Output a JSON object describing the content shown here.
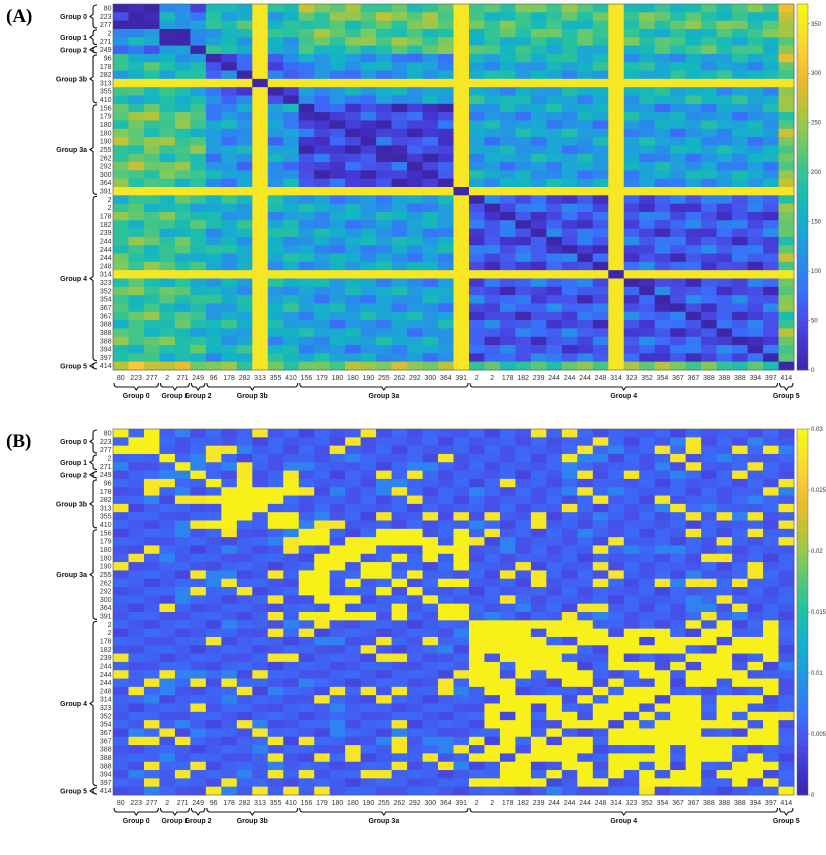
{
  "figure": {
    "panels": [
      {
        "label": "(A)"
      },
      {
        "label": "(B)"
      }
    ]
  },
  "chart_data": [
    {
      "type": "heatmap",
      "panel": "(A)",
      "title": "",
      "xlabel": "",
      "ylabel": "",
      "row_labels": [
        "80",
        "223",
        "277",
        "2",
        "271",
        "249",
        "96",
        "178",
        "282",
        "313",
        "355",
        "410",
        "156",
        "179",
        "180",
        "180",
        "190",
        "255",
        "262",
        "292",
        "300",
        "364",
        "391",
        "2",
        "2",
        "178",
        "182",
        "239",
        "244",
        "244",
        "244",
        "248",
        "314",
        "323",
        "352",
        "354",
        "367",
        "367",
        "388",
        "388",
        "388",
        "394",
        "397",
        "414"
      ],
      "col_labels": [
        "80",
        "223",
        "277",
        "2",
        "271",
        "249",
        "96",
        "178",
        "282",
        "313",
        "355",
        "410",
        "156",
        "179",
        "180",
        "180",
        "190",
        "255",
        "262",
        "292",
        "300",
        "364",
        "391",
        "2",
        "2",
        "178",
        "182",
        "239",
        "244",
        "244",
        "244",
        "248",
        "314",
        "323",
        "352",
        "354",
        "367",
        "367",
        "388",
        "388",
        "388",
        "394",
        "397",
        "414"
      ],
      "groups": [
        {
          "name": "Group 0",
          "start": 0,
          "end": 2
        },
        {
          "name": "Group 1",
          "start": 3,
          "end": 4
        },
        {
          "name": "Group 2",
          "start": 5,
          "end": 5
        },
        {
          "name": "Group 3b",
          "start": 6,
          "end": 11
        },
        {
          "name": "Group 3a",
          "start": 12,
          "end": 22
        },
        {
          "name": "Group 4",
          "start": 23,
          "end": 42
        },
        {
          "name": "Group 5",
          "start": 43,
          "end": 43
        }
      ],
      "colorbar": {
        "range": [
          0,
          370
        ],
        "ticks": [
          0,
          50,
          100,
          150,
          200,
          250,
          300,
          350
        ]
      },
      "colormap": [
        "#3e26a8",
        "#4435d0",
        "#4750e8",
        "#3a6ffc",
        "#2a8aeb",
        "#1fa1db",
        "#13b4c4",
        "#22c0a6",
        "#4bc682",
        "#83c95a",
        "#b9c437",
        "#e7ba2f",
        "#fdc937",
        "#f6e525",
        "#f9fb0e"
      ]
    },
    {
      "type": "heatmap",
      "panel": "(B)",
      "title": "",
      "xlabel": "",
      "ylabel": "",
      "row_labels": [
        "80",
        "223",
        "277",
        "2",
        "271",
        "249",
        "96",
        "178",
        "282",
        "313",
        "355",
        "410",
        "156",
        "179",
        "180",
        "180",
        "190",
        "255",
        "262",
        "292",
        "300",
        "364",
        "391",
        "2",
        "2",
        "178",
        "182",
        "239",
        "244",
        "244",
        "244",
        "248",
        "314",
        "323",
        "352",
        "354",
        "367",
        "367",
        "388",
        "388",
        "388",
        "394",
        "397",
        "414"
      ],
      "col_labels": [
        "80",
        "223",
        "277",
        "2",
        "271",
        "249",
        "96",
        "178",
        "282",
        "313",
        "355",
        "410",
        "156",
        "179",
        "180",
        "180",
        "190",
        "255",
        "262",
        "292",
        "300",
        "364",
        "391",
        "2",
        "2",
        "178",
        "182",
        "239",
        "244",
        "244",
        "244",
        "248",
        "314",
        "323",
        "352",
        "354",
        "367",
        "367",
        "388",
        "388",
        "388",
        "394",
        "397",
        "414"
      ],
      "groups": [
        {
          "name": "Group 0",
          "start": 0,
          "end": 2
        },
        {
          "name": "Group 1",
          "start": 3,
          "end": 4
        },
        {
          "name": "Group 2",
          "start": 5,
          "end": 5
        },
        {
          "name": "Group 3b",
          "start": 6,
          "end": 11
        },
        {
          "name": "Group 3a",
          "start": 12,
          "end": 22
        },
        {
          "name": "Group 4",
          "start": 23,
          "end": 42
        },
        {
          "name": "Group 5",
          "start": 43,
          "end": 43
        }
      ],
      "colorbar": {
        "range": [
          0,
          0.03
        ],
        "ticks": [
          0,
          0.005,
          0.01,
          0.015,
          0.02,
          0.025,
          0.03
        ]
      },
      "colormap": [
        "#3e26a8",
        "#4435d0",
        "#4750e8",
        "#3a6ffc",
        "#2a8aeb",
        "#1fa1db",
        "#13b4c4",
        "#22c0a6",
        "#4bc682",
        "#83c95a",
        "#b9c437",
        "#e7ba2f",
        "#fdc937",
        "#f6e525",
        "#f9fb0e"
      ]
    }
  ]
}
